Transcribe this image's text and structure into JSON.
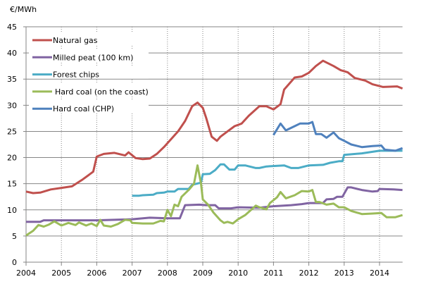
{
  "chart_data": {
    "type": "line",
    "title": "",
    "ylabel": "€/MWh",
    "xlabel": "",
    "xlim": [
      2004,
      2014.65
    ],
    "ylim": [
      0,
      45
    ],
    "x_ticks": [
      "2004",
      "2005",
      "2006",
      "2007",
      "2008",
      "2009",
      "2010",
      "2011",
      "2012",
      "2013",
      "2014"
    ],
    "y_ticks": [
      "0",
      "5",
      "10",
      "15",
      "20",
      "25",
      "30",
      "35",
      "40",
      "45"
    ],
    "grid": {
      "horizontal": "solid",
      "vertical": "dotted"
    },
    "legend_position": "top-left",
    "series": [
      {
        "name": "Natural gas",
        "color": "#c0504d",
        "points": [
          [
            2004.0,
            13.5
          ],
          [
            2004.2,
            13.2
          ],
          [
            2004.4,
            13.3
          ],
          [
            2004.7,
            13.9
          ],
          [
            2005.0,
            14.2
          ],
          [
            2005.3,
            14.5
          ],
          [
            2005.6,
            15.8
          ],
          [
            2005.9,
            17.3
          ],
          [
            2006.0,
            20.2
          ],
          [
            2006.2,
            20.7
          ],
          [
            2006.5,
            20.9
          ],
          [
            2006.8,
            20.4
          ],
          [
            2006.9,
            21.0
          ],
          [
            2007.1,
            19.9
          ],
          [
            2007.3,
            19.7
          ],
          [
            2007.5,
            19.8
          ],
          [
            2007.7,
            20.7
          ],
          [
            2007.9,
            22.0
          ],
          [
            2008.1,
            23.5
          ],
          [
            2008.3,
            25.0
          ],
          [
            2008.5,
            27.0
          ],
          [
            2008.7,
            29.8
          ],
          [
            2008.85,
            30.5
          ],
          [
            2009.0,
            29.5
          ],
          [
            2009.1,
            27.5
          ],
          [
            2009.25,
            24.0
          ],
          [
            2009.4,
            23.2
          ],
          [
            2009.5,
            24.0
          ],
          [
            2009.7,
            25.0
          ],
          [
            2009.9,
            26.0
          ],
          [
            2010.1,
            26.5
          ],
          [
            2010.3,
            28.0
          ],
          [
            2010.6,
            29.8
          ],
          [
            2010.8,
            29.8
          ],
          [
            2011.0,
            29.2
          ],
          [
            2011.2,
            30.2
          ],
          [
            2011.3,
            33.0
          ],
          [
            2011.6,
            35.3
          ],
          [
            2011.8,
            35.5
          ],
          [
            2012.0,
            36.2
          ],
          [
            2012.2,
            37.5
          ],
          [
            2012.4,
            38.5
          ],
          [
            2012.7,
            37.5
          ],
          [
            2012.9,
            36.7
          ],
          [
            2013.1,
            36.3
          ],
          [
            2013.3,
            35.2
          ],
          [
            2013.6,
            34.7
          ],
          [
            2013.8,
            34.0
          ],
          [
            2014.1,
            33.5
          ],
          [
            2014.5,
            33.6
          ],
          [
            2014.65,
            33.2
          ]
        ]
      },
      {
        "name": "Milled peat (100 km)",
        "color": "#8064a2",
        "points": [
          [
            2004.0,
            7.7
          ],
          [
            2004.4,
            7.7
          ],
          [
            2004.5,
            8.0
          ],
          [
            2005.0,
            8.0
          ],
          [
            2006.0,
            8.0
          ],
          [
            2007.0,
            8.2
          ],
          [
            2007.5,
            8.5
          ],
          [
            2008.0,
            8.4
          ],
          [
            2008.35,
            8.4
          ],
          [
            2008.5,
            10.9
          ],
          [
            2008.9,
            11.0
          ],
          [
            2009.1,
            10.9
          ],
          [
            2009.35,
            10.9
          ],
          [
            2009.45,
            10.3
          ],
          [
            2009.8,
            10.3
          ],
          [
            2010.0,
            10.5
          ],
          [
            2010.6,
            10.4
          ],
          [
            2011.0,
            10.7
          ],
          [
            2011.5,
            10.9
          ],
          [
            2011.8,
            11.1
          ],
          [
            2012.0,
            11.3
          ],
          [
            2012.4,
            11.3
          ],
          [
            2012.5,
            12.0
          ],
          [
            2012.7,
            12.1
          ],
          [
            2012.8,
            12.5
          ],
          [
            2012.95,
            12.5
          ],
          [
            2013.1,
            14.3
          ],
          [
            2013.2,
            14.3
          ],
          [
            2013.5,
            13.8
          ],
          [
            2013.8,
            13.5
          ],
          [
            2013.95,
            13.6
          ],
          [
            2014.0,
            14.0
          ],
          [
            2014.4,
            13.9
          ],
          [
            2014.65,
            13.8
          ]
        ]
      },
      {
        "name": "Forest chips",
        "color": "#4bacc6",
        "points": [
          [
            2007.0,
            12.7
          ],
          [
            2007.2,
            12.7
          ],
          [
            2007.3,
            12.8
          ],
          [
            2007.6,
            12.9
          ],
          [
            2007.7,
            13.2
          ],
          [
            2007.9,
            13.3
          ],
          [
            2008.0,
            13.5
          ],
          [
            2008.2,
            13.5
          ],
          [
            2008.3,
            14.0
          ],
          [
            2008.6,
            14.0
          ],
          [
            2008.7,
            14.8
          ],
          [
            2008.95,
            15.2
          ],
          [
            2009.0,
            16.8
          ],
          [
            2009.2,
            16.9
          ],
          [
            2009.35,
            17.6
          ],
          [
            2009.5,
            18.7
          ],
          [
            2009.6,
            18.7
          ],
          [
            2009.75,
            17.7
          ],
          [
            2009.9,
            17.7
          ],
          [
            2010.0,
            18.5
          ],
          [
            2010.2,
            18.5
          ],
          [
            2010.5,
            18.0
          ],
          [
            2010.6,
            18.0
          ],
          [
            2010.8,
            18.3
          ],
          [
            2011.3,
            18.5
          ],
          [
            2011.5,
            18.0
          ],
          [
            2011.7,
            18.0
          ],
          [
            2012.0,
            18.5
          ],
          [
            2012.4,
            18.6
          ],
          [
            2012.6,
            19.0
          ],
          [
            2012.85,
            19.3
          ],
          [
            2012.95,
            19.3
          ],
          [
            2013.0,
            20.5
          ],
          [
            2013.5,
            20.8
          ],
          [
            2014.0,
            21.3
          ],
          [
            2014.65,
            21.3
          ]
        ]
      },
      {
        "name": "Hard coal (on the coast)",
        "color": "#9bbb59",
        "points": [
          [
            2004.0,
            5.1
          ],
          [
            2004.2,
            6.0
          ],
          [
            2004.35,
            7.1
          ],
          [
            2004.5,
            6.8
          ],
          [
            2004.65,
            7.2
          ],
          [
            2004.8,
            7.8
          ],
          [
            2005.0,
            7.0
          ],
          [
            2005.2,
            7.5
          ],
          [
            2005.4,
            7.1
          ],
          [
            2005.5,
            7.6
          ],
          [
            2005.7,
            7.0
          ],
          [
            2005.85,
            7.4
          ],
          [
            2006.0,
            6.9
          ],
          [
            2006.1,
            8.1
          ],
          [
            2006.2,
            7.0
          ],
          [
            2006.4,
            6.8
          ],
          [
            2006.6,
            7.3
          ],
          [
            2006.8,
            8.1
          ],
          [
            2006.95,
            8.0
          ],
          [
            2007.0,
            7.5
          ],
          [
            2007.3,
            7.4
          ],
          [
            2007.6,
            7.4
          ],
          [
            2007.8,
            7.9
          ],
          [
            2007.9,
            7.8
          ],
          [
            2008.0,
            10.0
          ],
          [
            2008.1,
            8.8
          ],
          [
            2008.2,
            11.0
          ],
          [
            2008.3,
            10.7
          ],
          [
            2008.4,
            12.5
          ],
          [
            2008.6,
            13.8
          ],
          [
            2008.75,
            15.0
          ],
          [
            2008.85,
            18.5
          ],
          [
            2008.95,
            15.0
          ],
          [
            2009.0,
            12.0
          ],
          [
            2009.15,
            11.0
          ],
          [
            2009.3,
            9.5
          ],
          [
            2009.5,
            8.0
          ],
          [
            2009.6,
            7.5
          ],
          [
            2009.7,
            7.7
          ],
          [
            2009.85,
            7.4
          ],
          [
            2010.0,
            8.2
          ],
          [
            2010.2,
            9.0
          ],
          [
            2010.4,
            10.2
          ],
          [
            2010.5,
            10.8
          ],
          [
            2010.6,
            10.5
          ],
          [
            2010.8,
            10.1
          ],
          [
            2010.9,
            11.3
          ],
          [
            2011.1,
            12.4
          ],
          [
            2011.2,
            13.4
          ],
          [
            2011.35,
            12.2
          ],
          [
            2011.6,
            12.8
          ],
          [
            2011.8,
            13.6
          ],
          [
            2012.0,
            13.5
          ],
          [
            2012.1,
            13.8
          ],
          [
            2012.2,
            11.5
          ],
          [
            2012.3,
            11.5
          ],
          [
            2012.5,
            11.0
          ],
          [
            2012.7,
            11.2
          ],
          [
            2012.85,
            10.5
          ],
          [
            2013.0,
            10.5
          ],
          [
            2013.2,
            9.8
          ],
          [
            2013.5,
            9.2
          ],
          [
            2013.8,
            9.3
          ],
          [
            2014.05,
            9.4
          ],
          [
            2014.2,
            8.6
          ],
          [
            2014.45,
            8.6
          ],
          [
            2014.65,
            9.0
          ]
        ]
      },
      {
        "name": "Hard coal (CHP)",
        "color": "#4f81bd",
        "points": [
          [
            2011.0,
            24.3
          ],
          [
            2011.2,
            26.5
          ],
          [
            2011.35,
            25.2
          ],
          [
            2011.6,
            26.0
          ],
          [
            2011.75,
            26.5
          ],
          [
            2012.0,
            26.5
          ],
          [
            2012.1,
            26.8
          ],
          [
            2012.2,
            24.5
          ],
          [
            2012.35,
            24.5
          ],
          [
            2012.5,
            23.8
          ],
          [
            2012.7,
            24.8
          ],
          [
            2012.85,
            23.7
          ],
          [
            2013.0,
            23.2
          ],
          [
            2013.2,
            22.5
          ],
          [
            2013.5,
            22.0
          ],
          [
            2013.8,
            22.2
          ],
          [
            2014.05,
            22.3
          ],
          [
            2014.15,
            21.5
          ],
          [
            2014.45,
            21.3
          ],
          [
            2014.65,
            21.8
          ]
        ]
      }
    ]
  }
}
